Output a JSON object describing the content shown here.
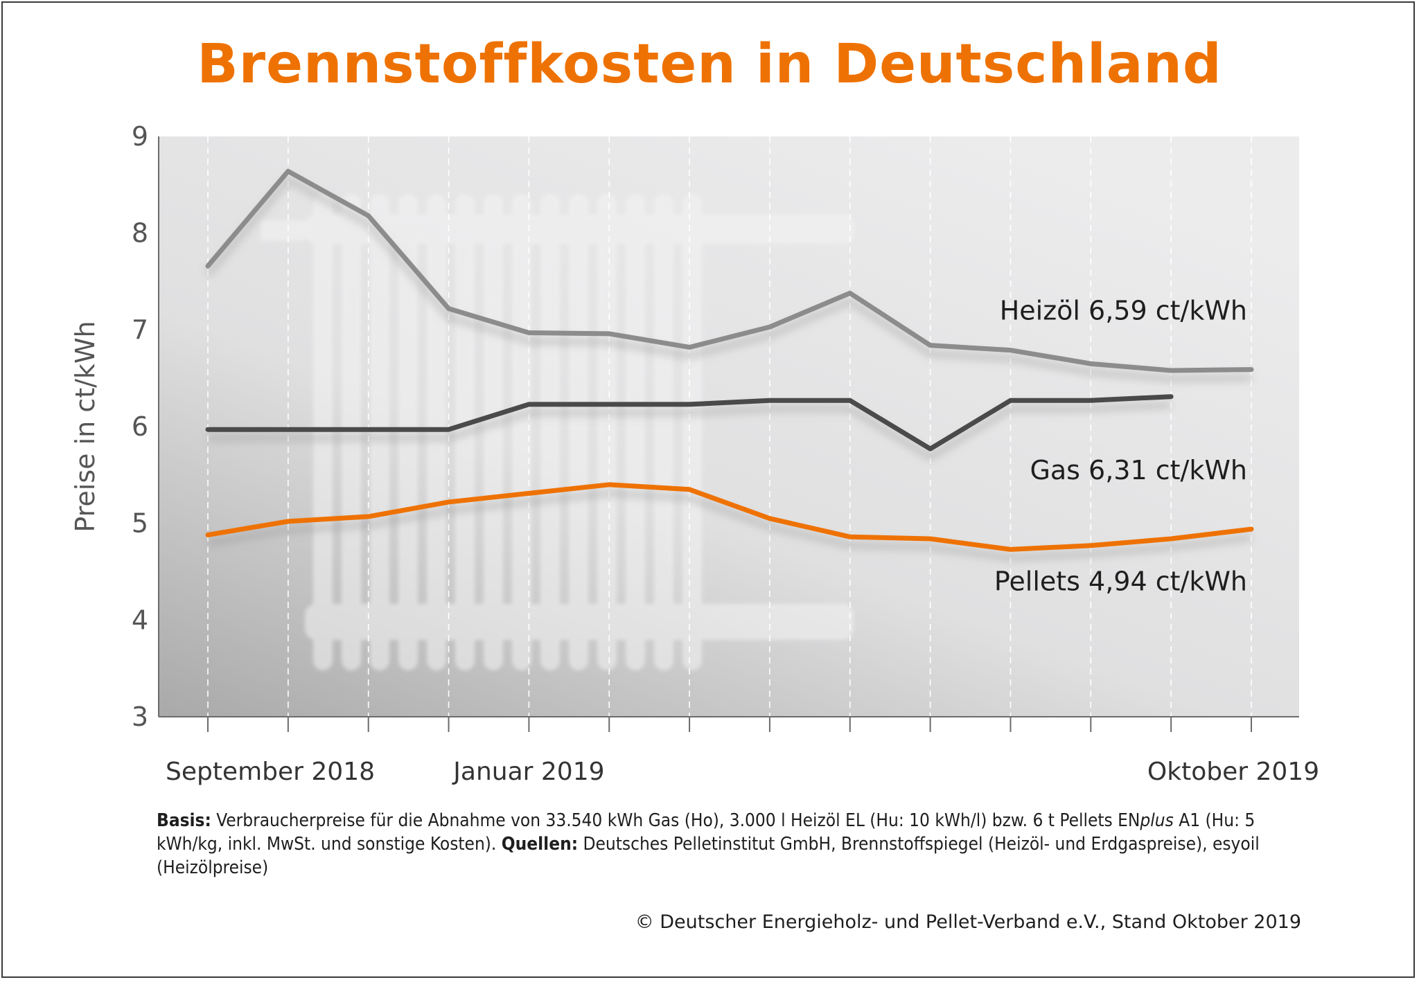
{
  "header": {
    "title": "Brennstoffkosten in Deutschland"
  },
  "chart_data": {
    "type": "line",
    "title": "Brennstoffkosten in Deutschland",
    "xlabel": "",
    "ylabel": "Preise in ct/kWh",
    "ylim": [
      3,
      9
    ],
    "yticks": [
      "3",
      "4",
      "5",
      "6",
      "7",
      "8",
      "9"
    ],
    "x": [
      "2018-09",
      "2018-10",
      "2018-11",
      "2018-12",
      "2019-01",
      "2019-02",
      "2019-03",
      "2019-04",
      "2019-05",
      "2019-06",
      "2019-07",
      "2019-08",
      "2019-09",
      "2019-10"
    ],
    "xtick_labels": [
      {
        "index": 0,
        "label": "September 2018"
      },
      {
        "index": 4,
        "label": "Januar 2019"
      },
      {
        "index": 13,
        "label": "Oktober 2019"
      }
    ],
    "grid": "vertical dashed",
    "series": [
      {
        "name": "Heizöl",
        "label": "Heizöl 6,59 ct/kWh",
        "color": "#8c8c8c",
        "values": [
          7.66,
          8.64,
          8.18,
          7.22,
          6.97,
          6.96,
          6.82,
          7.03,
          7.38,
          6.84,
          6.79,
          6.65,
          6.58,
          6.59
        ]
      },
      {
        "name": "Gas",
        "label": "Gas  6,31 ct/kWh",
        "color": "#4a4a4a",
        "values": [
          5.97,
          5.97,
          5.97,
          5.97,
          6.23,
          6.23,
          6.23,
          6.27,
          6.27,
          5.77,
          6.27,
          6.27,
          6.31,
          null
        ]
      },
      {
        "name": "Pellets",
        "label": "Pellets  4,94 ct/kWh",
        "color": "#ee7203",
        "values": [
          4.88,
          5.02,
          5.07,
          5.22,
          5.31,
          5.4,
          5.35,
          5.05,
          4.86,
          4.84,
          4.73,
          4.77,
          4.84,
          4.94
        ]
      }
    ]
  },
  "notes": {
    "basis_label": "Basis:",
    "basis_text_1": " Verbraucherpreise für die Abnahme von 33.540 kWh Gas (Ho), 3.000 l Heizöl EL (Hu: 10 kWh/l) bzw. 6 t Pellets EN",
    "basis_italic": "plus",
    "basis_text_2": " A1 (Hu: 5 kWh/kg, inkl. MwSt. und sonstige Kosten). ",
    "sources_label": "Quellen:",
    "sources_text": " Deutsches Pelletinstitut GmbH, Brennstoffspiegel (Heizöl- und Erdgaspreise), esyoil (Heizölpreise)"
  },
  "footer": {
    "copyright": "© Deutscher Energieholz- und Pellet-Verband e.V., Stand Oktober 2019"
  }
}
